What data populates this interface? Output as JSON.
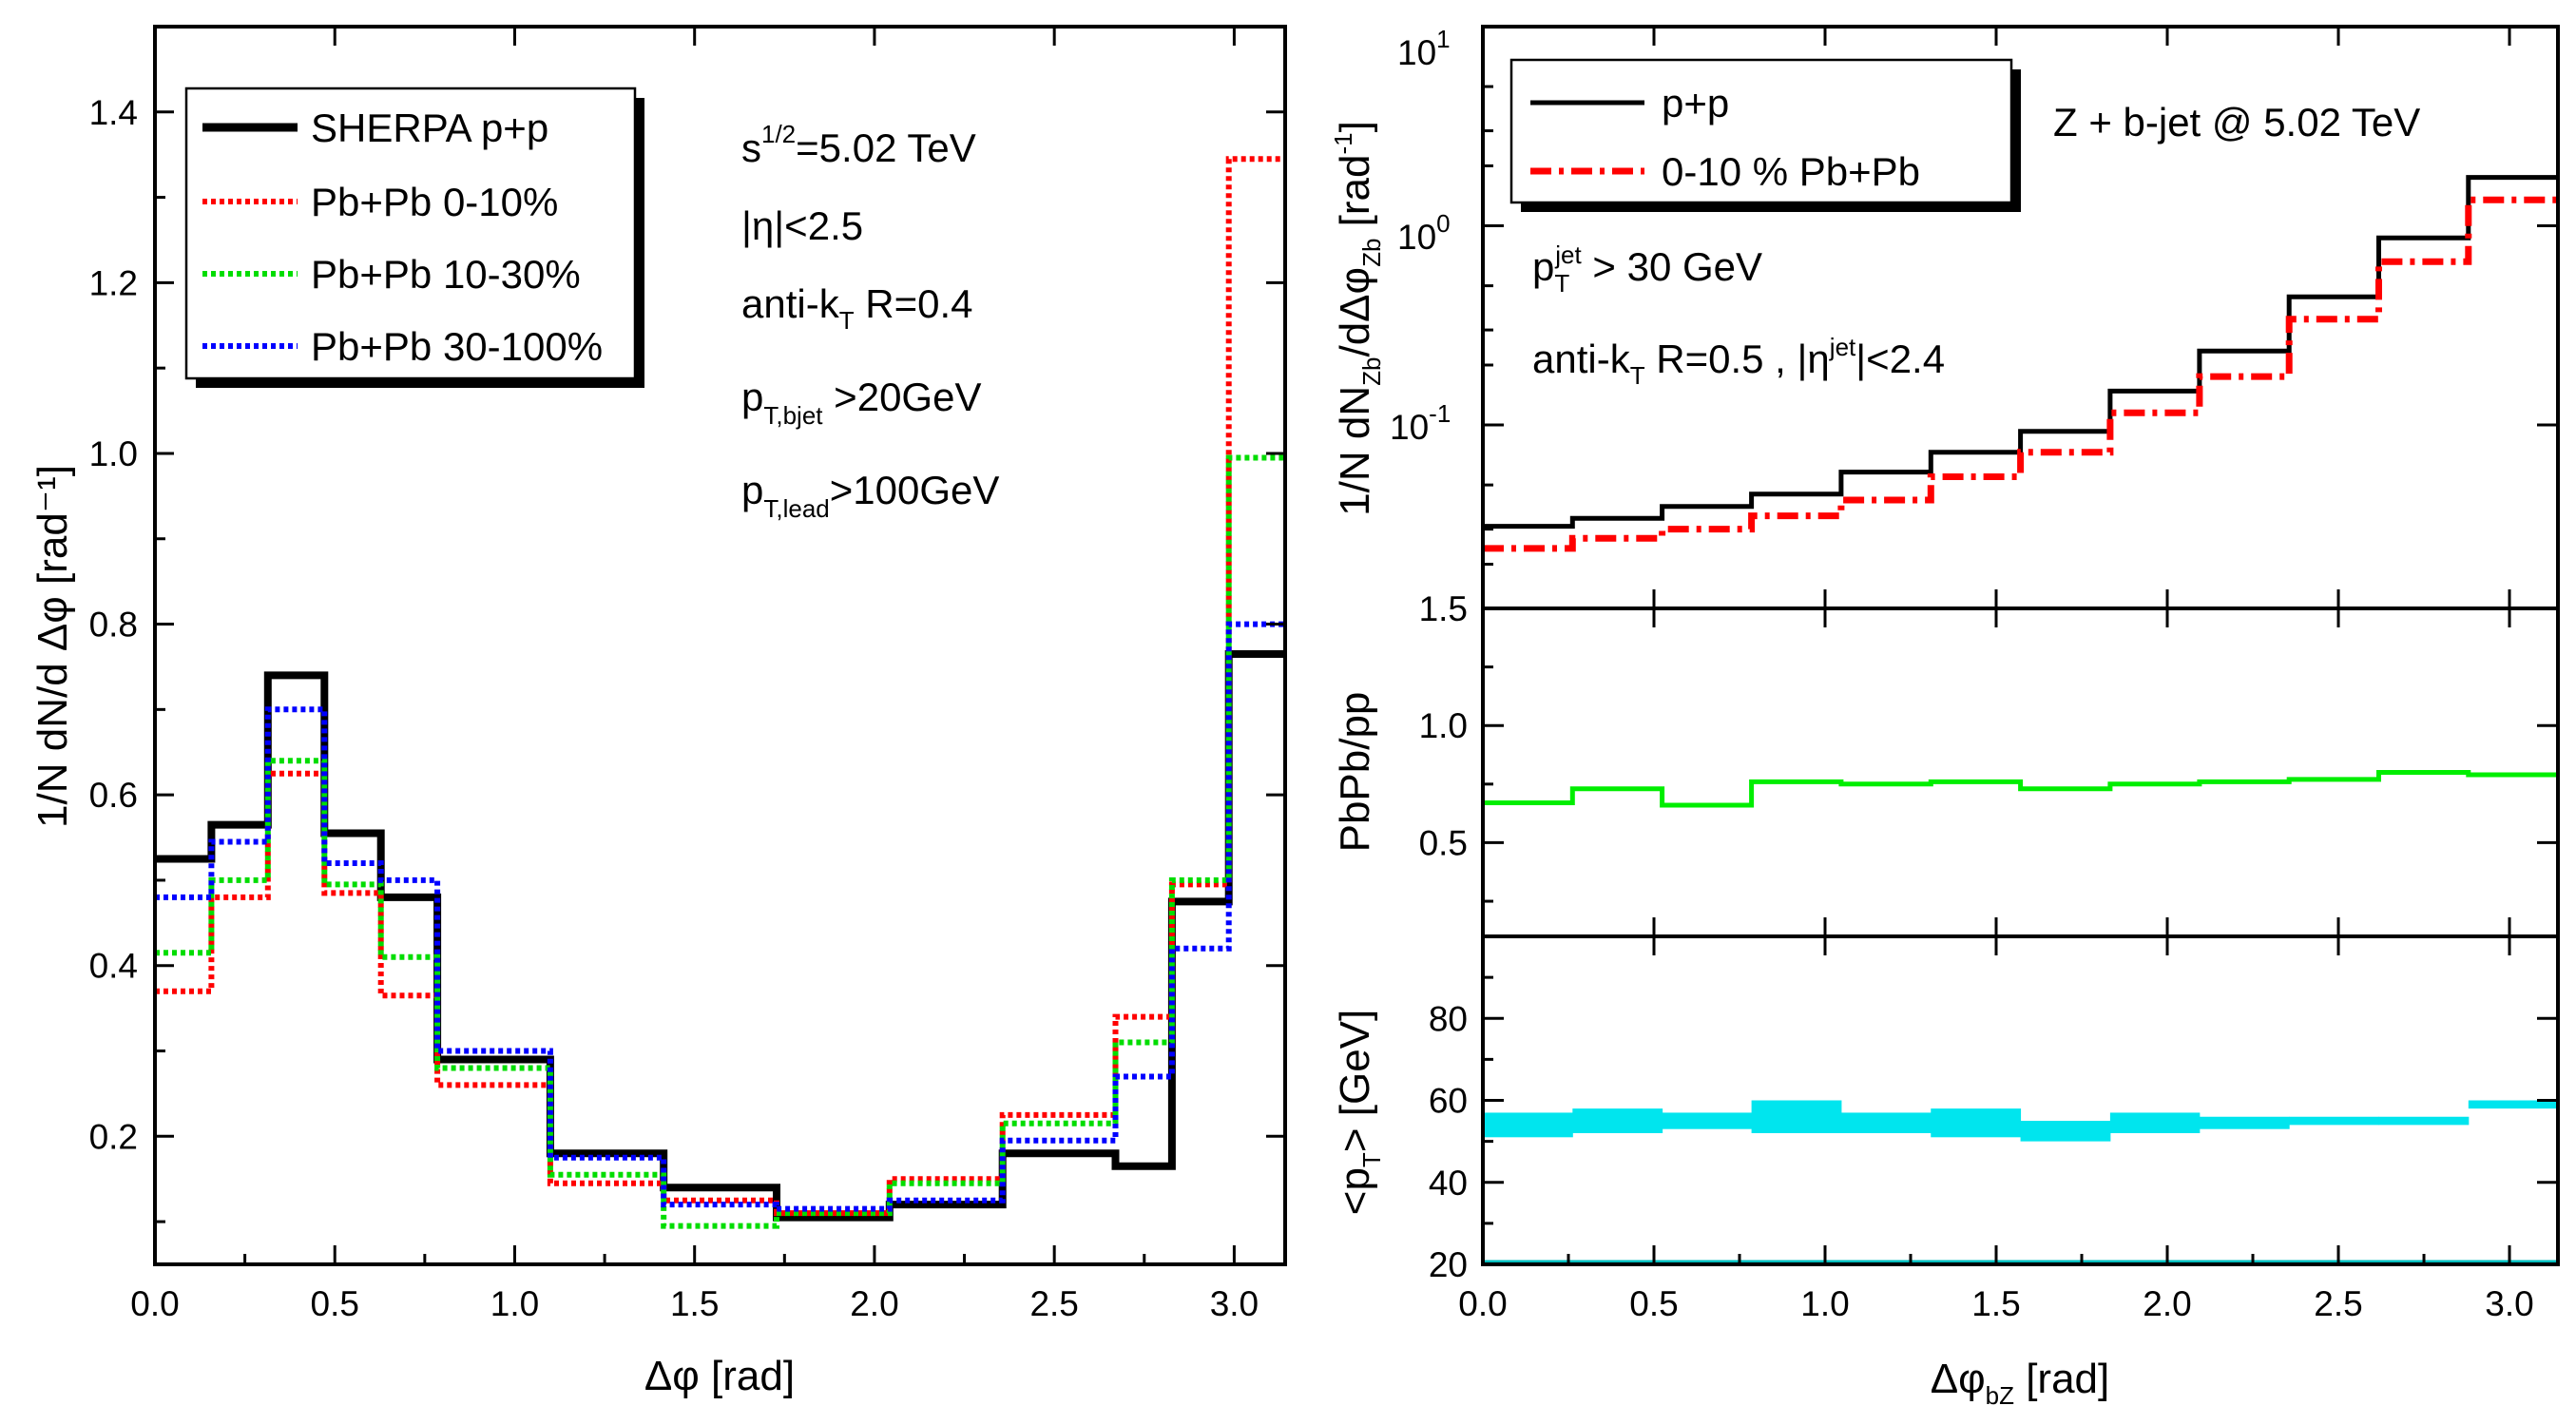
{
  "chart_data": [
    {
      "id": "left",
      "type": "line",
      "subtype": "step",
      "xlabel": "Δφ [rad]",
      "ylabel": "1/N dN/d Δφ [rad⁻¹]",
      "xlim": [
        0,
        3.1416
      ],
      "ylim": [
        0.05,
        1.5
      ],
      "xticks": [
        "0.0",
        "0.5",
        "1.0",
        "1.5",
        "2.0",
        "2.5",
        "3.0"
      ],
      "yticks": [
        "0.2",
        "0.4",
        "0.6",
        "0.8",
        "1.0",
        "1.2",
        "1.4"
      ],
      "bin_edges": [
        0,
        0.157,
        0.314,
        0.471,
        0.628,
        0.785,
        1.099,
        1.414,
        1.728,
        2.042,
        2.356,
        2.67,
        2.827,
        2.985,
        3.1416
      ],
      "series": [
        {
          "name": "SHERPA p+p",
          "color": "#000000",
          "style": "solid",
          "values": [
            0.525,
            0.565,
            0.74,
            0.555,
            0.48,
            0.29,
            0.18,
            0.14,
            0.105,
            0.12,
            0.18,
            0.165,
            0.475,
            0.765
          ]
        },
        {
          "name": "Pb+Pb 0-10%",
          "color": "#ff0000",
          "style": "dotted",
          "values": [
            0.37,
            0.48,
            0.625,
            0.485,
            0.365,
            0.26,
            0.145,
            0.125,
            0.11,
            0.15,
            0.225,
            0.34,
            0.495,
            1.345
          ]
        },
        {
          "name": "Pb+Pb 10-30%",
          "color": "#00dd00",
          "style": "dotted",
          "values": [
            0.415,
            0.5,
            0.64,
            0.495,
            0.41,
            0.28,
            0.155,
            0.095,
            0.11,
            0.145,
            0.215,
            0.31,
            0.5,
            0.995
          ]
        },
        {
          "name": "Pb+Pb 30-100%",
          "color": "#0000ff",
          "style": "dotted",
          "values": [
            0.48,
            0.545,
            0.7,
            0.52,
            0.5,
            0.3,
            0.175,
            0.12,
            0.115,
            0.125,
            0.195,
            0.27,
            0.42,
            0.8
          ]
        }
      ],
      "annotations": {
        "sqrt_s": {
          "main": "s",
          "sup": "1/2",
          "rest": "=5.02 TeV"
        },
        "eta": "|η|<2.5",
        "antikt": {
          "main": "anti-k",
          "sub": "T",
          "rest": " R=0.4"
        },
        "pt_bjet": {
          "main": "p",
          "sub": "T,bjet",
          "rest": " >20GeV"
        },
        "pt_lead": {
          "main": "p",
          "sub": "T,lead",
          "rest": ">100GeV"
        }
      },
      "legend_position": "top-left"
    },
    {
      "id": "right-top",
      "type": "line",
      "subtype": "step",
      "yscale": "log",
      "ylabel": "1/N dN_Zb/dΔφ_Zb [rad⁻¹]",
      "xlim": [
        0,
        3.1416
      ],
      "ylim": [
        0.012,
        10
      ],
      "ytick_base": "10",
      "ytick_exponents": [
        "1",
        "0",
        "-1"
      ],
      "bin_edges": [
        0,
        0.262,
        0.524,
        0.785,
        1.047,
        1.309,
        1.571,
        1.833,
        2.094,
        2.356,
        2.618,
        2.88,
        3.1416
      ],
      "series": [
        {
          "name": "p+p",
          "color": "#000000",
          "style": "solid",
          "values": [
            0.031,
            0.034,
            0.039,
            0.045,
            0.058,
            0.073,
            0.093,
            0.148,
            0.235,
            0.44,
            0.87,
            1.75
          ]
        },
        {
          "name": "0-10 % Pb+Pb",
          "color": "#ff0000",
          "style": "dashdot",
          "values": [
            0.024,
            0.027,
            0.03,
            0.035,
            0.042,
            0.055,
            0.073,
            0.115,
            0.175,
            0.34,
            0.66,
            1.35
          ]
        }
      ],
      "annotations": {
        "title": "Z + b-jet @ 5.02 TeV",
        "ptjet": {
          "main": "p",
          "sub": "T",
          "sup": "jet",
          "rest": " > 30 GeV"
        },
        "antikt": {
          "main": "anti-k",
          "sub": "T",
          "rest": " R=0.5 , |η",
          "sup": "jet",
          "rest2": "|<2.4"
        }
      },
      "legend_position": "top-left"
    },
    {
      "id": "right-middle",
      "type": "line",
      "subtype": "step",
      "ylabel": "PbPb/pp",
      "xlim": [
        0,
        3.1416
      ],
      "ylim": [
        0.1,
        1.5
      ],
      "yticks": [
        "0.5",
        "1.0",
        "1.5"
      ],
      "bin_edges": [
        0,
        0.262,
        0.524,
        0.785,
        1.047,
        1.309,
        1.571,
        1.833,
        2.094,
        2.356,
        2.618,
        2.88,
        3.1416
      ],
      "series": [
        {
          "name": "PbPb/pp",
          "color": "#00ee00",
          "style": "solid",
          "values": [
            0.67,
            0.73,
            0.66,
            0.76,
            0.75,
            0.76,
            0.73,
            0.75,
            0.76,
            0.77,
            0.8,
            0.79
          ]
        }
      ]
    },
    {
      "id": "right-bottom",
      "type": "area",
      "subtype": "step-band",
      "ylabel": "<p_T> [GeV]",
      "xlabel": "Δφ_bZ [rad]",
      "xlim": [
        0,
        3.1416
      ],
      "ylim": [
        20,
        100
      ],
      "yticks": [
        "20",
        "40",
        "60",
        "80"
      ],
      "xticks": [
        "0.0",
        "0.5",
        "1.0",
        "1.5",
        "2.0",
        "2.5",
        "3.0"
      ],
      "bin_edges": [
        0,
        0.262,
        0.524,
        0.785,
        1.047,
        1.309,
        1.571,
        1.833,
        2.094,
        2.356,
        2.618,
        2.88,
        3.1416
      ],
      "series": [
        {
          "name": "<pT> band",
          "color": "#00e5ee",
          "low": [
            51,
            52,
            53,
            52,
            52,
            51,
            50,
            52,
            53,
            54,
            54,
            58
          ],
          "high": [
            57,
            58,
            57,
            60,
            57,
            58,
            55,
            57,
            56,
            56,
            56,
            60
          ]
        }
      ]
    }
  ]
}
